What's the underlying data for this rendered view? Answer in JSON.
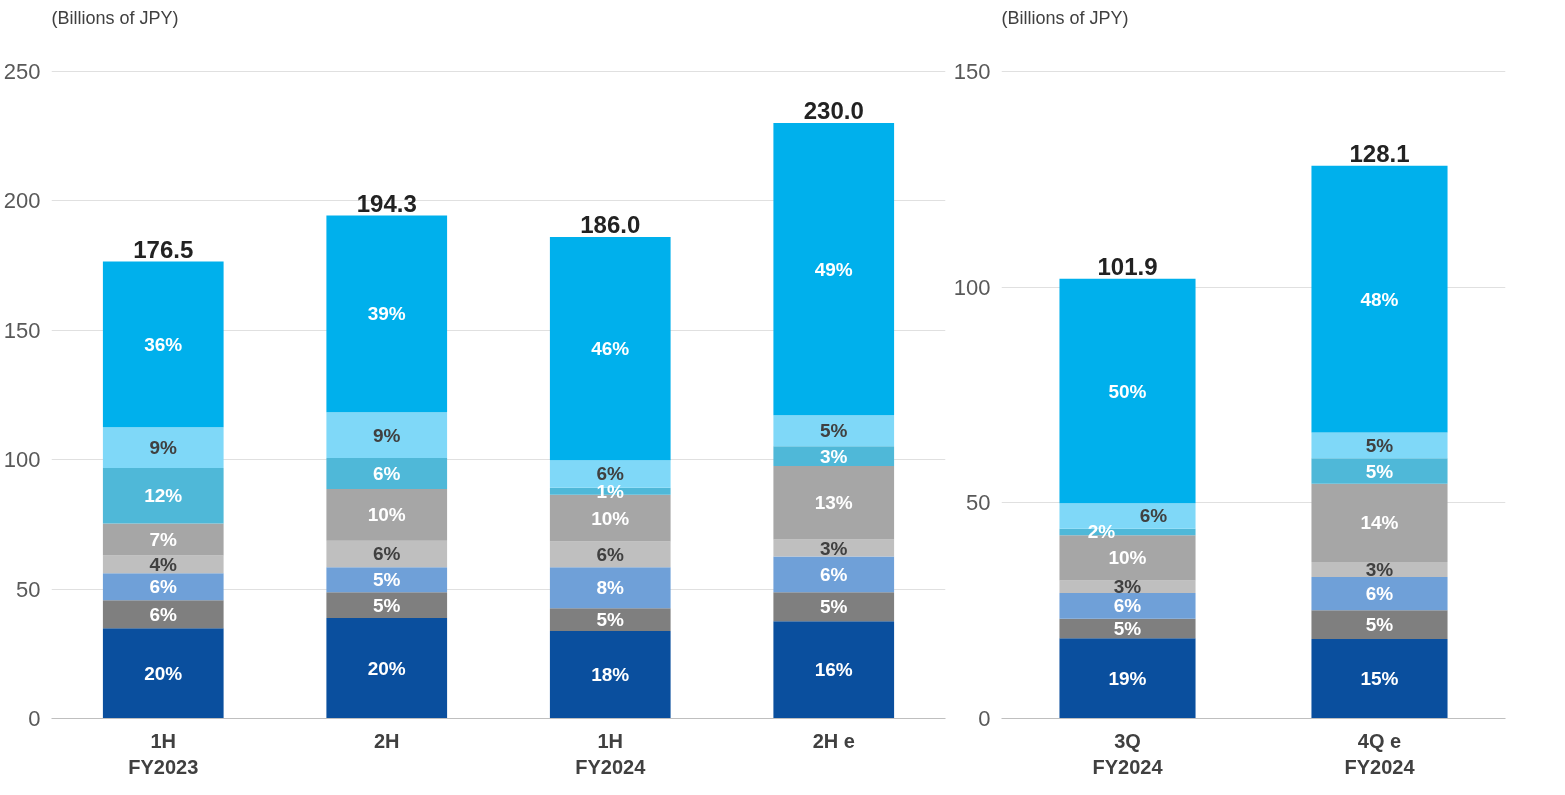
{
  "chart_data": [
    {
      "type": "bar",
      "stacked": true,
      "ylabel": "(Billions of JPY)",
      "categories": [
        "1H\nFY2023",
        "2H",
        "1H\nFY2024",
        "2H e"
      ],
      "ylim": [
        0,
        250
      ],
      "yticks": [
        0,
        50,
        100,
        150,
        200,
        250
      ],
      "grid": "y",
      "tick_labels": "xy",
      "totals": [
        "176.5",
        "194.3",
        "186.0",
        "230.0"
      ],
      "series": [
        {
          "color": "#0a4f9e",
          "values": [
            34.9,
            38.8,
            33.8,
            37.6
          ]
        },
        {
          "color": "#7f7f7f",
          "values": [
            10.8,
            10.0,
            8.8,
            11.2
          ]
        },
        {
          "color": "#6fa0d8",
          "values": [
            10.4,
            9.6,
            15.8,
            13.8
          ]
        },
        {
          "color": "#bfbfbf",
          "values": [
            6.9,
            10.3,
            10.0,
            6.5
          ]
        },
        {
          "color": "#a6a6a6",
          "values": [
            12.3,
            20.0,
            18.0,
            28.4
          ]
        },
        {
          "color": "#4fb8d8",
          "values": [
            21.5,
            11.9,
            2.7,
            7.7
          ]
        },
        {
          "color": "#7fd8f8",
          "values": [
            15.7,
            17.7,
            10.7,
            11.9
          ]
        },
        {
          "color": "#00b0ec",
          "values": [
            64.0,
            76.0,
            86.2,
            112.9
          ]
        }
      ],
      "annotations": [
        "20%",
        "6%",
        "6%",
        "4%",
        "7%",
        "12%",
        "9%",
        "36%",
        "20%",
        "5%",
        "5%",
        "6%",
        "10%",
        "6%",
        "9%",
        "39%",
        "18%",
        "5%",
        "8%",
        "6%",
        "10%",
        "1%",
        "6%",
        "46%",
        "16%",
        "5%",
        "6%",
        "3%",
        "13%",
        "3%",
        "5%",
        "49%"
      ]
    },
    {
      "type": "bar",
      "stacked": true,
      "ylabel": "(Billions of JPY)",
      "categories": [
        "3Q\nFY2024",
        "4Q e\nFY2024"
      ],
      "ylim": [
        0,
        150
      ],
      "yticks": [
        0,
        50,
        100,
        150
      ],
      "grid": "y",
      "tick_labels": "xy",
      "totals": [
        "101.9",
        "128.1"
      ],
      "series": [
        {
          "color": "#0a4f9e",
          "values": [
            18.6,
            18.4
          ]
        },
        {
          "color": "#7f7f7f",
          "values": [
            4.5,
            6.7
          ]
        },
        {
          "color": "#6fa0d8",
          "values": [
            6.0,
            7.7
          ]
        },
        {
          "color": "#bfbfbf",
          "values": [
            2.9,
            3.5
          ]
        },
        {
          "color": "#a6a6a6",
          "values": [
            10.5,
            18.1
          ]
        },
        {
          "color": "#4fb8d8",
          "values": [
            1.5,
            5.9
          ]
        },
        {
          "color": "#7fd8f8",
          "values": [
            5.9,
            6.0
          ]
        },
        {
          "color": "#00b0ec",
          "values": [
            52.0,
            61.8
          ]
        }
      ],
      "annotations": [
        "19%",
        "5%",
        "6%",
        "3%",
        "10%",
        "2%",
        "6%",
        "50%",
        "15%",
        "5%",
        "6%",
        "3%",
        "14%",
        "5%",
        "5%",
        "48%"
      ]
    }
  ]
}
